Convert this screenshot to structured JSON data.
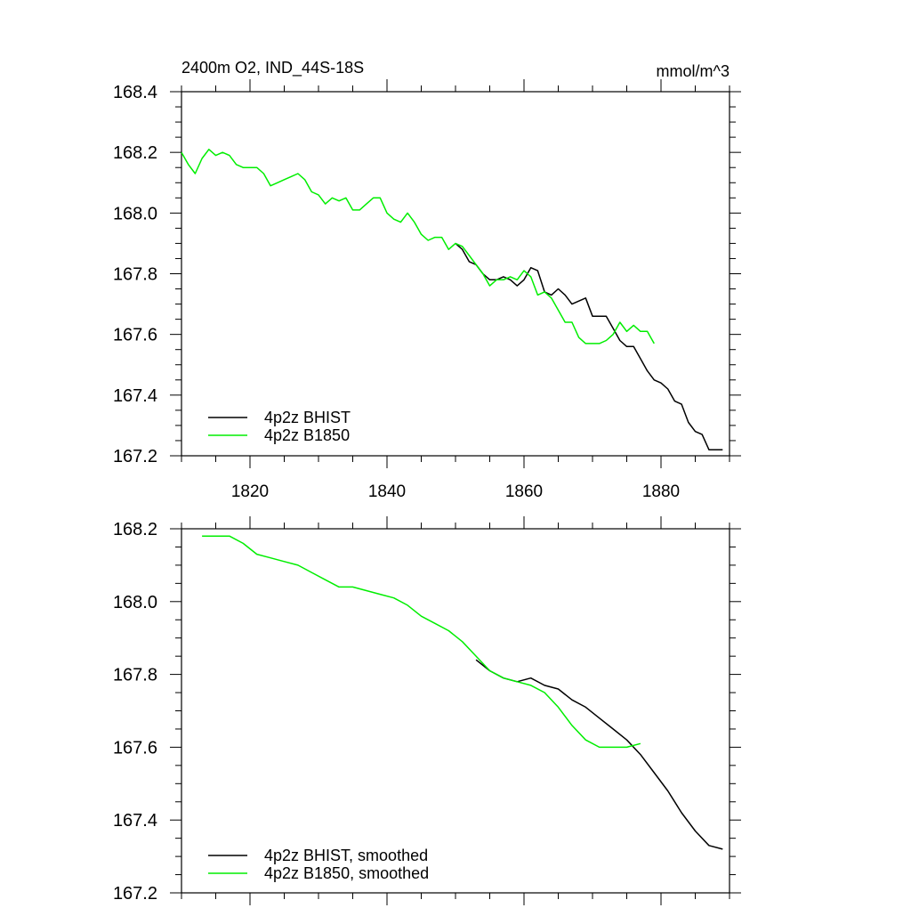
{
  "colors": {
    "bhist": "#000000",
    "b1850": "#00ee00"
  },
  "chart_data": [
    {
      "type": "line",
      "title": "2400m O2, IND_44S-18S",
      "units": "mmol/m^3",
      "xlabel": "",
      "ylabel": "",
      "xlim": [
        1810,
        1890
      ],
      "ylim": [
        167.2,
        168.4
      ],
      "xticks": [
        1820,
        1840,
        1860,
        1880
      ],
      "xtick_labels": [
        "1820",
        "1840",
        "1860",
        "1880"
      ],
      "yticks": [
        167.2,
        167.4,
        167.6,
        167.8,
        168.0,
        168.2,
        168.4
      ],
      "ytick_labels": [
        "167.2",
        "167.4",
        "167.6",
        "167.8",
        "168.0",
        "168.2",
        "168.4"
      ],
      "grid": false,
      "legend_position": "bottom-left",
      "series": [
        {
          "name": "4p2z BHIST",
          "color": "#000000",
          "x": [
            1850,
            1851,
            1852,
            1853,
            1854,
            1855,
            1856,
            1857,
            1858,
            1859,
            1860,
            1861,
            1862,
            1863,
            1864,
            1865,
            1866,
            1867,
            1868,
            1869,
            1870,
            1871,
            1872,
            1873,
            1874,
            1875,
            1876,
            1877,
            1878,
            1879,
            1880,
            1881,
            1882,
            1883,
            1884,
            1885,
            1886,
            1887,
            1888,
            1889
          ],
          "y": [
            167.9,
            167.88,
            167.84,
            167.83,
            167.8,
            167.78,
            167.78,
            167.79,
            167.78,
            167.76,
            167.78,
            167.82,
            167.81,
            167.74,
            167.73,
            167.75,
            167.73,
            167.7,
            167.71,
            167.72,
            167.66,
            167.66,
            167.66,
            167.62,
            167.58,
            167.56,
            167.56,
            167.52,
            167.48,
            167.45,
            167.44,
            167.42,
            167.38,
            167.37,
            167.31,
            167.28,
            167.27,
            167.22,
            167.22,
            167.22
          ]
        },
        {
          "name": "4p2z B1850",
          "color": "#00ee00",
          "x": [
            1810,
            1811,
            1812,
            1813,
            1814,
            1815,
            1816,
            1817,
            1818,
            1819,
            1820,
            1821,
            1822,
            1823,
            1824,
            1825,
            1826,
            1827,
            1828,
            1829,
            1830,
            1831,
            1832,
            1833,
            1834,
            1835,
            1836,
            1837,
            1838,
            1839,
            1840,
            1841,
            1842,
            1843,
            1844,
            1845,
            1846,
            1847,
            1848,
            1849,
            1850,
            1851,
            1852,
            1853,
            1854,
            1855,
            1856,
            1857,
            1858,
            1859,
            1860,
            1861,
            1862,
            1863,
            1864,
            1865,
            1866,
            1867,
            1868,
            1869,
            1870,
            1871,
            1872,
            1873,
            1874,
            1875,
            1876,
            1877,
            1878,
            1879
          ],
          "y": [
            168.2,
            168.16,
            168.13,
            168.18,
            168.21,
            168.19,
            168.2,
            168.19,
            168.16,
            168.15,
            168.15,
            168.15,
            168.13,
            168.09,
            168.1,
            168.11,
            168.12,
            168.13,
            168.11,
            168.07,
            168.06,
            168.03,
            168.05,
            168.04,
            168.05,
            168.01,
            168.01,
            168.03,
            168.05,
            168.05,
            168.0,
            167.98,
            167.97,
            168.0,
            167.97,
            167.93,
            167.91,
            167.92,
            167.92,
            167.88,
            167.9,
            167.89,
            167.86,
            167.83,
            167.8,
            167.76,
            167.78,
            167.78,
            167.79,
            167.78,
            167.81,
            167.79,
            167.73,
            167.74,
            167.72,
            167.68,
            167.64,
            167.64,
            167.59,
            167.57,
            167.57,
            167.57,
            167.58,
            167.6,
            167.64,
            167.61,
            167.63,
            167.61,
            167.61,
            167.57
          ]
        }
      ]
    },
    {
      "type": "line",
      "title": "",
      "xlim": [
        1810,
        1890
      ],
      "ylim": [
        167.2,
        168.2
      ],
      "xticks": [
        1820,
        1840,
        1860,
        1880
      ],
      "yticks": [
        167.2,
        167.4,
        167.6,
        167.8,
        168.0,
        168.2
      ],
      "ytick_labels": [
        "167.2",
        "167.4",
        "167.6",
        "167.8",
        "168.0",
        "168.2"
      ],
      "grid": false,
      "legend_position": "bottom-left",
      "series": [
        {
          "name": "4p2z BHIST, smoothed",
          "color": "#000000",
          "x": [
            1853,
            1855,
            1857,
            1859,
            1861,
            1863,
            1865,
            1867,
            1869,
            1871,
            1873,
            1875,
            1877,
            1879,
            1881,
            1883,
            1885,
            1887,
            1889
          ],
          "y": [
            167.84,
            167.81,
            167.79,
            167.78,
            167.79,
            167.77,
            167.76,
            167.73,
            167.71,
            167.68,
            167.65,
            167.62,
            167.58,
            167.53,
            167.48,
            167.42,
            167.37,
            167.33,
            167.32
          ]
        },
        {
          "name": "4p2z B1850, smoothed",
          "color": "#00ee00",
          "x": [
            1813,
            1815,
            1817,
            1819,
            1821,
            1823,
            1825,
            1827,
            1829,
            1831,
            1833,
            1835,
            1837,
            1839,
            1841,
            1843,
            1845,
            1847,
            1849,
            1851,
            1853,
            1855,
            1857,
            1859,
            1861,
            1863,
            1865,
            1867,
            1869,
            1871,
            1873,
            1875,
            1877
          ],
          "y": [
            168.18,
            168.18,
            168.18,
            168.16,
            168.13,
            168.12,
            168.11,
            168.1,
            168.08,
            168.06,
            168.04,
            168.04,
            168.03,
            168.02,
            168.01,
            167.99,
            167.96,
            167.94,
            167.92,
            167.89,
            167.85,
            167.81,
            167.79,
            167.78,
            167.77,
            167.75,
            167.71,
            167.66,
            167.62,
            167.6,
            167.6,
            167.6,
            167.61
          ]
        }
      ]
    }
  ]
}
